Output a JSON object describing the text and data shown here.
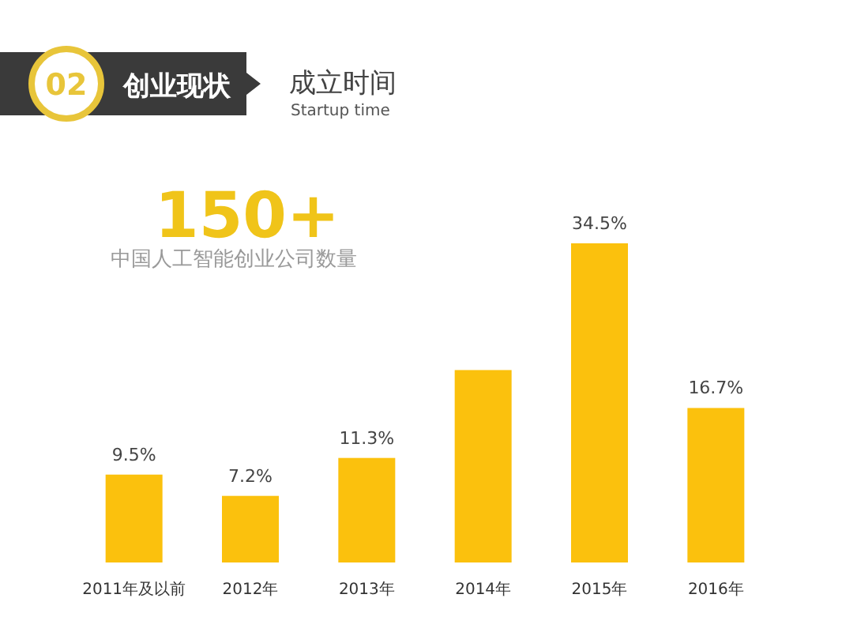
{
  "chart_data": {
    "type": "bar",
    "title": "成立时间",
    "subtitle": "Startup time",
    "annotations": [
      "02",
      "创业现状",
      "150+",
      "中国人工智能创业公司数量"
    ],
    "categories": [
      "2011年及以前",
      "2012年",
      "2013年",
      "2014年",
      "2015年",
      "2016年"
    ],
    "values": [
      9.5,
      7.2,
      11.3,
      20.8,
      34.5,
      16.7
    ],
    "value_labels": [
      "9.5%",
      "7.2%",
      "11.3%",
      null,
      "34.5%",
      "16.7%"
    ],
    "color": "#fbc10d"
  }
}
